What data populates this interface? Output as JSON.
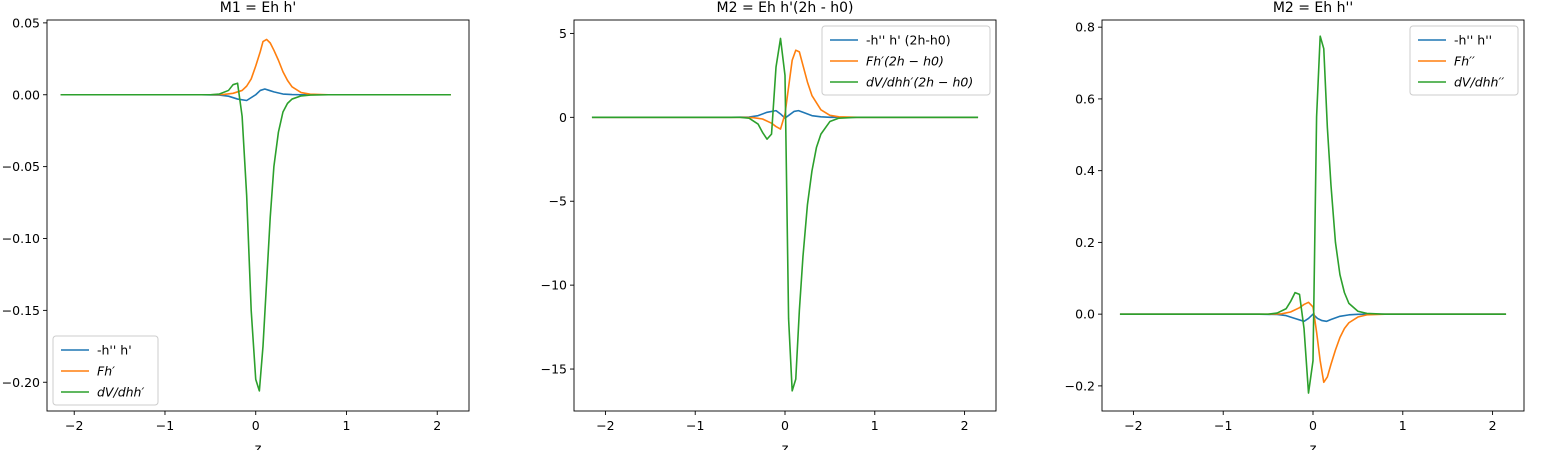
{
  "figure": {
    "background": "#ffffff"
  },
  "colors": {
    "blue": "#1f77b4",
    "orange": "#ff7f0e",
    "green": "#2ca02c"
  },
  "chart_data": [
    {
      "type": "line",
      "title": "M1 = Eh h'",
      "xlabel": "z",
      "xlim": [
        -2.3,
        2.35
      ],
      "ylim": [
        -0.22,
        0.052
      ],
      "xticks": [
        -2,
        -1,
        0,
        1,
        2
      ],
      "xtick_labels": [
        "−2",
        "−1",
        "0",
        "1",
        "2"
      ],
      "yticks": [
        0.05,
        0.0,
        -0.05,
        -0.1,
        -0.15,
        -0.2
      ],
      "ytick_labels": [
        "0.05",
        "0.00",
        "−0.05",
        "−0.10",
        "−0.15",
        "−0.20"
      ],
      "legend": {
        "position": "lower-left"
      },
      "series": [
        {
          "name": "-h'' h'",
          "color": "#1f77b4",
          "x": [
            -2.15,
            -0.6,
            -0.4,
            -0.3,
            -0.2,
            -0.1,
            0.0,
            0.05,
            0.1,
            0.15,
            0.2,
            0.3,
            0.4,
            0.5,
            0.7,
            2.15
          ],
          "y": [
            0,
            0,
            -0.0002,
            -0.001,
            -0.003,
            -0.004,
            0.0,
            0.003,
            0.004,
            0.003,
            0.002,
            0.0005,
            0.0001,
            0,
            0,
            0
          ]
        },
        {
          "name": "Fh′",
          "color": "#ff7f0e",
          "x": [
            -2.15,
            -0.5,
            -0.35,
            -0.25,
            -0.15,
            -0.1,
            -0.05,
            0.0,
            0.05,
            0.08,
            0.12,
            0.16,
            0.2,
            0.25,
            0.3,
            0.35,
            0.4,
            0.5,
            0.6,
            0.8,
            2.15
          ],
          "y": [
            0,
            0,
            0.0002,
            0.001,
            0.003,
            0.006,
            0.011,
            0.02,
            0.03,
            0.037,
            0.0385,
            0.036,
            0.031,
            0.024,
            0.016,
            0.01,
            0.0055,
            0.0015,
            0.0004,
            0,
            0
          ]
        },
        {
          "name": "dV/dhh′",
          "color": "#2ca02c",
          "x": [
            -2.15,
            -0.5,
            -0.4,
            -0.3,
            -0.25,
            -0.2,
            -0.15,
            -0.1,
            -0.05,
            0.0,
            0.04,
            0.08,
            0.12,
            0.16,
            0.2,
            0.25,
            0.3,
            0.35,
            0.4,
            0.5,
            0.6,
            0.8,
            2.15
          ],
          "y": [
            0,
            0,
            0.0005,
            0.003,
            0.007,
            0.008,
            -0.015,
            -0.07,
            -0.15,
            -0.198,
            -0.206,
            -0.175,
            -0.13,
            -0.085,
            -0.05,
            -0.026,
            -0.012,
            -0.006,
            -0.003,
            -0.0008,
            -0.0002,
            0,
            0
          ]
        }
      ]
    },
    {
      "type": "line",
      "title": "M2 = Eh h'(2h - h0)",
      "xlabel": "z",
      "xlim": [
        -2.35,
        2.35
      ],
      "ylim": [
        -17.5,
        5.8
      ],
      "xticks": [
        -2,
        -1,
        0,
        1,
        2
      ],
      "xtick_labels": [
        "−2",
        "−1",
        "0",
        "1",
        "2"
      ],
      "yticks": [
        5,
        0,
        -5,
        -10,
        -15
      ],
      "ytick_labels": [
        "5",
        "0",
        "−5",
        "−10",
        "−15"
      ],
      "legend": {
        "position": "top-right"
      },
      "series": [
        {
          "name": "-h'' h' (2h-h0)",
          "color": "#1f77b4",
          "x": [
            -2.15,
            -0.6,
            -0.4,
            -0.3,
            -0.2,
            -0.1,
            -0.05,
            0.0,
            0.05,
            0.1,
            0.15,
            0.2,
            0.3,
            0.4,
            0.5,
            0.7,
            2.15
          ],
          "y": [
            0,
            0,
            0.02,
            0.1,
            0.3,
            0.4,
            0.2,
            -0.05,
            0.15,
            0.35,
            0.4,
            0.3,
            0.1,
            0.03,
            0,
            0,
            0
          ]
        },
        {
          "name": "Fh′(2h − h0)",
          "color": "#ff7f0e",
          "x": [
            -2.15,
            -0.5,
            -0.35,
            -0.25,
            -0.15,
            -0.1,
            -0.05,
            0.0,
            0.05,
            0.08,
            0.12,
            0.16,
            0.2,
            0.25,
            0.3,
            0.4,
            0.5,
            0.6,
            0.8,
            2.15
          ],
          "y": [
            0,
            0,
            -0.02,
            -0.1,
            -0.35,
            -0.55,
            -0.7,
            0.2,
            2.2,
            3.4,
            4.0,
            3.9,
            3.1,
            2.1,
            1.3,
            0.45,
            0.12,
            0.03,
            0,
            0
          ]
        },
        {
          "name": "dV/dhh′(2h − h0)",
          "color": "#2ca02c",
          "x": [
            -2.15,
            -0.5,
            -0.4,
            -0.3,
            -0.25,
            -0.2,
            -0.15,
            -0.1,
            -0.05,
            0.0,
            0.04,
            0.08,
            0.12,
            0.16,
            0.2,
            0.25,
            0.3,
            0.35,
            0.4,
            0.5,
            0.6,
            0.8,
            2.15
          ],
          "y": [
            0,
            0,
            -0.05,
            -0.4,
            -0.9,
            -1.3,
            -1.0,
            3.0,
            4.7,
            2.5,
            -12.0,
            -16.3,
            -15.6,
            -11.5,
            -8.3,
            -5.2,
            -3.2,
            -1.8,
            -1.0,
            -0.25,
            -0.05,
            0,
            0
          ]
        }
      ]
    },
    {
      "type": "line",
      "title": "M2 = Eh h''",
      "xlabel": "z",
      "xlim": [
        -2.35,
        2.35
      ],
      "ylim": [
        -0.27,
        0.82
      ],
      "xticks": [
        -2,
        -1,
        0,
        1,
        2
      ],
      "xtick_labels": [
        "−2",
        "−1",
        "0",
        "1",
        "2"
      ],
      "yticks": [
        0.8,
        0.6,
        0.4,
        0.2,
        0.0,
        -0.2
      ],
      "ytick_labels": [
        "0.8",
        "0.6",
        "0.4",
        "0.2",
        "0.0",
        "−0.2"
      ],
      "legend": {
        "position": "top-right"
      },
      "series": [
        {
          "name": "-h'' h''",
          "color": "#1f77b4",
          "x": [
            -2.15,
            -0.6,
            -0.4,
            -0.3,
            -0.2,
            -0.1,
            -0.05,
            0.0,
            0.05,
            0.1,
            0.15,
            0.2,
            0.3,
            0.4,
            0.5,
            0.7,
            2.15
          ],
          "y": [
            0,
            0,
            -0.001,
            -0.004,
            -0.012,
            -0.02,
            -0.012,
            0.0,
            -0.012,
            -0.018,
            -0.02,
            -0.015,
            -0.006,
            -0.002,
            -0.0005,
            0,
            0
          ]
        },
        {
          "name": "Fh′′",
          "color": "#ff7f0e",
          "x": [
            -2.15,
            -0.5,
            -0.35,
            -0.25,
            -0.15,
            -0.1,
            -0.05,
            0.0,
            0.04,
            0.08,
            0.12,
            0.16,
            0.2,
            0.25,
            0.3,
            0.35,
            0.4,
            0.5,
            0.6,
            0.8,
            2.15
          ],
          "y": [
            0,
            0,
            0.001,
            0.006,
            0.018,
            0.027,
            0.033,
            0.02,
            -0.05,
            -0.13,
            -0.19,
            -0.175,
            -0.14,
            -0.1,
            -0.065,
            -0.04,
            -0.024,
            -0.008,
            -0.002,
            0,
            0
          ]
        },
        {
          "name": "dV/dhh′′",
          "color": "#2ca02c",
          "x": [
            -2.15,
            -0.5,
            -0.4,
            -0.3,
            -0.25,
            -0.2,
            -0.15,
            -0.1,
            -0.05,
            0.0,
            0.04,
            0.08,
            0.12,
            0.16,
            0.2,
            0.25,
            0.3,
            0.35,
            0.4,
            0.5,
            0.6,
            0.8,
            2.15
          ],
          "y": [
            0,
            0,
            0.003,
            0.015,
            0.035,
            0.06,
            0.055,
            -0.04,
            -0.22,
            -0.13,
            0.55,
            0.775,
            0.74,
            0.52,
            0.36,
            0.2,
            0.11,
            0.06,
            0.03,
            0.008,
            0.002,
            0,
            0
          ]
        }
      ]
    }
  ]
}
